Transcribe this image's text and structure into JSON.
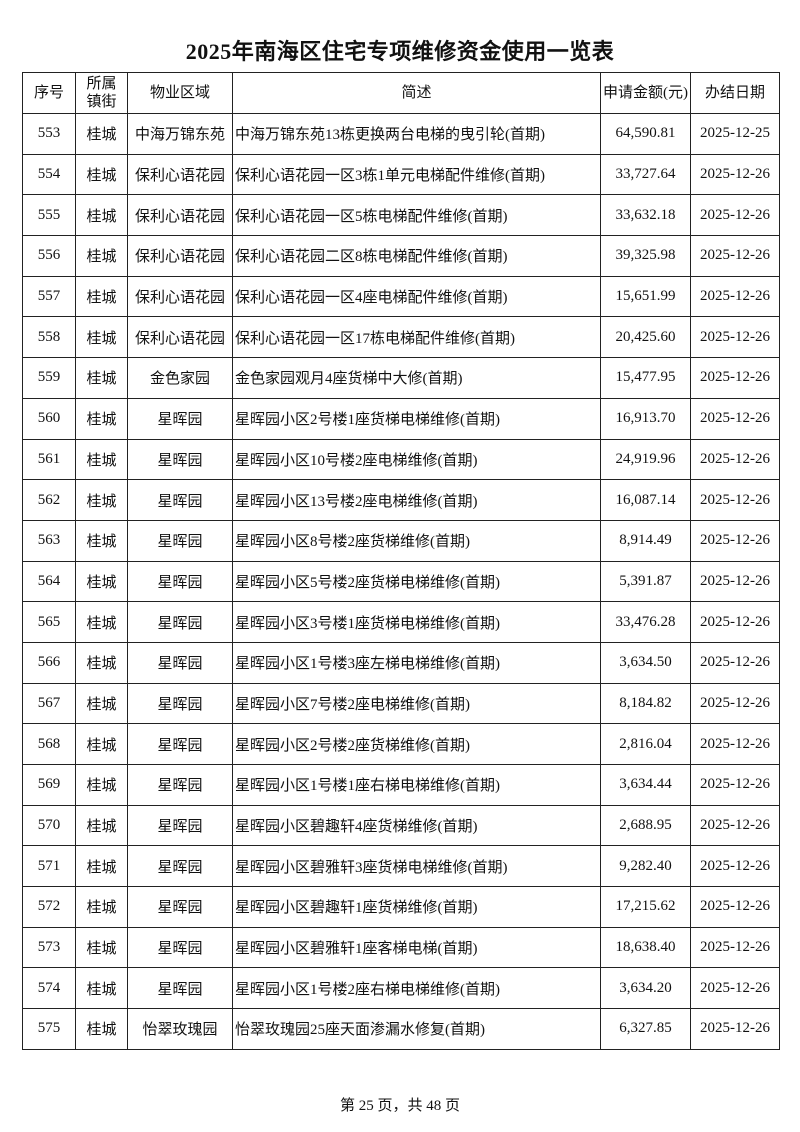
{
  "title": "2025年南海区住宅专项维修资金使用一览表",
  "columns": [
    "序号",
    "所属镇街",
    "物业区域",
    "简述",
    "申请金额(元)",
    "办结日期"
  ],
  "rows": [
    [
      "553",
      "桂城",
      "中海万锦东苑",
      "中海万锦东苑13栋更换两台电梯的曳引轮(首期)",
      "64,590.81",
      "2025-12-25"
    ],
    [
      "554",
      "桂城",
      "保利心语花园",
      "保利心语花园一区3栋1单元电梯配件维修(首期)",
      "33,727.64",
      "2025-12-26"
    ],
    [
      "555",
      "桂城",
      "保利心语花园",
      "保利心语花园一区5栋电梯配件维修(首期)",
      "33,632.18",
      "2025-12-26"
    ],
    [
      "556",
      "桂城",
      "保利心语花园",
      "保利心语花园二区8栋电梯配件维修(首期)",
      "39,325.98",
      "2025-12-26"
    ],
    [
      "557",
      "桂城",
      "保利心语花园",
      "保利心语花园一区4座电梯配件维修(首期)",
      "15,651.99",
      "2025-12-26"
    ],
    [
      "558",
      "桂城",
      "保利心语花园",
      "保利心语花园一区17栋电梯配件维修(首期)",
      "20,425.60",
      "2025-12-26"
    ],
    [
      "559",
      "桂城",
      "金色家园",
      "金色家园观月4座货梯中大修(首期)",
      "15,477.95",
      "2025-12-26"
    ],
    [
      "560",
      "桂城",
      "星晖园",
      "星晖园小区2号楼1座货梯电梯维修(首期)",
      "16,913.70",
      "2025-12-26"
    ],
    [
      "561",
      "桂城",
      "星晖园",
      "星晖园小区10号楼2座电梯维修(首期)",
      "24,919.96",
      "2025-12-26"
    ],
    [
      "562",
      "桂城",
      "星晖园",
      "星晖园小区13号楼2座电梯维修(首期)",
      "16,087.14",
      "2025-12-26"
    ],
    [
      "563",
      "桂城",
      "星晖园",
      "星晖园小区8号楼2座货梯维修(首期)",
      "8,914.49",
      "2025-12-26"
    ],
    [
      "564",
      "桂城",
      "星晖园",
      "星晖园小区5号楼2座货梯电梯维修(首期)",
      "5,391.87",
      "2025-12-26"
    ],
    [
      "565",
      "桂城",
      "星晖园",
      "星晖园小区3号楼1座货梯电梯维修(首期)",
      "33,476.28",
      "2025-12-26"
    ],
    [
      "566",
      "桂城",
      "星晖园",
      "星晖园小区1号楼3座左梯电梯维修(首期)",
      "3,634.50",
      "2025-12-26"
    ],
    [
      "567",
      "桂城",
      "星晖园",
      "星晖园小区7号楼2座电梯维修(首期)",
      "8,184.82",
      "2025-12-26"
    ],
    [
      "568",
      "桂城",
      "星晖园",
      "星晖园小区2号楼2座货梯维修(首期)",
      "2,816.04",
      "2025-12-26"
    ],
    [
      "569",
      "桂城",
      "星晖园",
      "星晖园小区1号楼1座右梯电梯维修(首期)",
      "3,634.44",
      "2025-12-26"
    ],
    [
      "570",
      "桂城",
      "星晖园",
      "星晖园小区碧趣轩4座货梯维修(首期)",
      "2,688.95",
      "2025-12-26"
    ],
    [
      "571",
      "桂城",
      "星晖园",
      "星晖园小区碧雅轩3座货梯电梯维修(首期)",
      "9,282.40",
      "2025-12-26"
    ],
    [
      "572",
      "桂城",
      "星晖园",
      "星晖园小区碧趣轩1座货梯维修(首期)",
      "17,215.62",
      "2025-12-26"
    ],
    [
      "573",
      "桂城",
      "星晖园",
      "星晖园小区碧雅轩1座客梯电梯(首期)",
      "18,638.40",
      "2025-12-26"
    ],
    [
      "574",
      "桂城",
      "星晖园",
      "星晖园小区1号楼2座右梯电梯维修(首期)",
      "3,634.20",
      "2025-12-26"
    ],
    [
      "575",
      "桂城",
      "怡翠玫瑰园",
      "怡翠玫瑰园25座天面渗漏水修复(首期)",
      "6,327.85",
      "2025-12-26"
    ]
  ],
  "footer": "第 25 页，共 48 页"
}
